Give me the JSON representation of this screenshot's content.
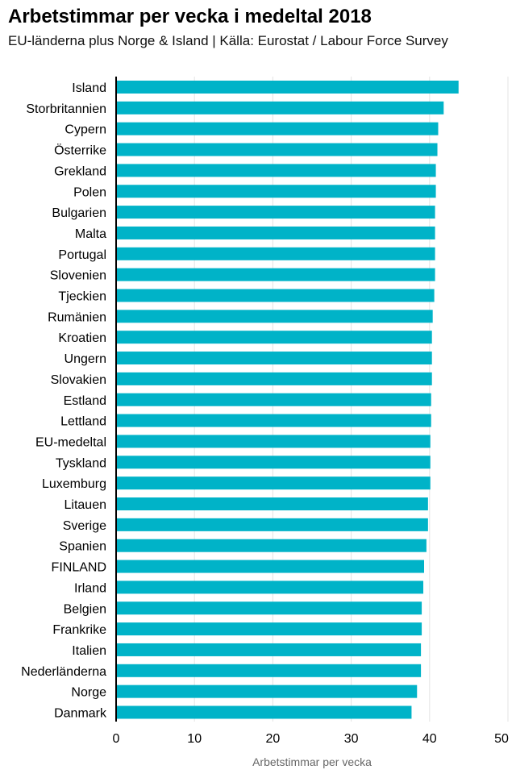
{
  "title": "Arbetstimmar per vecka i medeltal 2018",
  "subtitle": "EU-länderna plus Norge & Island | Källa: Eurostat / Labour Force Survey",
  "chart_data": {
    "type": "bar",
    "orientation": "horizontal",
    "categories": [
      "Island",
      "Storbritannien",
      "Cypern",
      "Österrike",
      "Grekland",
      "Polen",
      "Bulgarien",
      "Malta",
      "Portugal",
      "Slovenien",
      "Tjeckien",
      "Rumänien",
      "Kroatien",
      "Ungern",
      "Slovakien",
      "Estland",
      "Lettland",
      "EU-medeltal",
      "Tyskland",
      "Luxemburg",
      "Litauen",
      "Sverige",
      "Spanien",
      "FINLAND",
      "Irland",
      "Belgien",
      "Frankrike",
      "Italien",
      "Nederländerna",
      "Norge",
      "Danmark"
    ],
    "values": [
      43.7,
      41.8,
      41.1,
      41.0,
      40.8,
      40.8,
      40.7,
      40.7,
      40.7,
      40.7,
      40.6,
      40.4,
      40.3,
      40.3,
      40.3,
      40.2,
      40.2,
      40.1,
      40.1,
      40.1,
      39.8,
      39.8,
      39.6,
      39.3,
      39.2,
      39.0,
      39.0,
      38.9,
      38.9,
      38.4,
      37.7
    ],
    "xlabel": "Arbetstimmar per vecka",
    "ylabel": "",
    "xlim": [
      0,
      50
    ],
    "xticks": [
      "0",
      "10",
      "20",
      "30",
      "40",
      "50"
    ],
    "grid": true,
    "bar_color": "#00b3c8"
  }
}
